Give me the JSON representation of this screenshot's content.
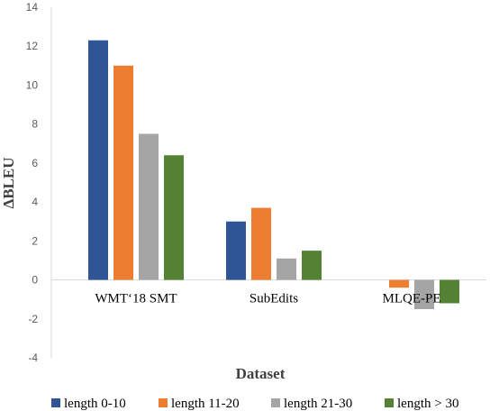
{
  "chart_data": {
    "type": "bar",
    "title": "",
    "xlabel": "Dataset",
    "ylabel": "ΔBLEU",
    "ylim": [
      -4,
      14
    ],
    "yticks": [
      -4,
      -2,
      0,
      2,
      4,
      6,
      8,
      10,
      12,
      14
    ],
    "grid": false,
    "legend_position": "bottom",
    "categories": [
      "WMT‘18 SMT",
      "SubEdits",
      "MLQE-PE"
    ],
    "series": [
      {
        "name": "length 0-10",
        "color": "#2F5597",
        "values": [
          12.3,
          3.0,
          0.0
        ]
      },
      {
        "name": "length 11-20",
        "color": "#ED7D31",
        "values": [
          11.0,
          3.7,
          -0.4
        ]
      },
      {
        "name": "length 21-30",
        "color": "#A5A5A5",
        "values": [
          7.5,
          1.1,
          -1.5
        ]
      },
      {
        "name": "length > 30",
        "color": "#548235",
        "values": [
          6.4,
          1.5,
          -1.2
        ]
      }
    ]
  }
}
